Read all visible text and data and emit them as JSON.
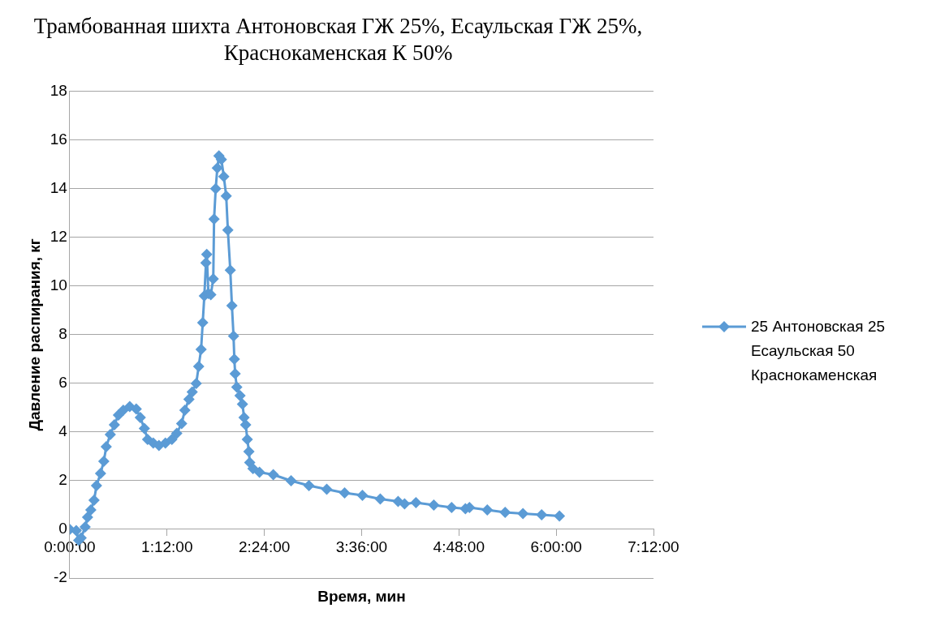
{
  "chart_data": {
    "type": "line",
    "title": "Трамбованная шихта Антоновская ГЖ 25%, Есаульская ГЖ 25%, Краснокаменская К 50%",
    "xlabel": "Время, мин",
    "ylabel": "Давление распирания, кг",
    "xlim": [
      0,
      7.2
    ],
    "xticks": [
      {
        "value": 0,
        "label": "0:00:00"
      },
      {
        "value": 1.2,
        "label": "1:12:00"
      },
      {
        "value": 2.4,
        "label": "2:24:00"
      },
      {
        "value": 3.6,
        "label": "3:36:00"
      },
      {
        "value": 4.8,
        "label": "4:48:00"
      },
      {
        "value": 6,
        "label": "6:00:00"
      },
      {
        "value": 7.2,
        "label": "7:12:00"
      }
    ],
    "ylim": [
      -2,
      18
    ],
    "yticks": [
      -2,
      0,
      2,
      4,
      6,
      8,
      10,
      12,
      14,
      16,
      18
    ],
    "grid": "y",
    "legend": "right",
    "marker": "diamond",
    "line_style": "solid",
    "series": [
      {
        "name": "25 Антоновская 25 Есаульская 50 Краснокаменская",
        "color": "#5b9bd5",
        "x": [
          0,
          0.08,
          0.11,
          0.14,
          0.19,
          0.22,
          0.26,
          0.3,
          0.33,
          0.38,
          0.42,
          0.45,
          0.5,
          0.55,
          0.6,
          0.66,
          0.74,
          0.82,
          0.87,
          0.92,
          0.96,
          1.03,
          1.1,
          1.18,
          1.26,
          1.32,
          1.38,
          1.42,
          1.47,
          1.51,
          1.56,
          1.59,
          1.62,
          1.64,
          1.66,
          1.68,
          1.69,
          1.71,
          1.74,
          1.77,
          1.78,
          1.8,
          1.82,
          1.84,
          1.87,
          1.9,
          1.93,
          1.95,
          1.98,
          2.0,
          2.02,
          2.03,
          2.04,
          2.06,
          2.1,
          2.13,
          2.15,
          2.17,
          2.19,
          2.21,
          2.22,
          2.26,
          2.34,
          2.51,
          2.73,
          2.95,
          3.17,
          3.39,
          3.61,
          3.83,
          4.05,
          4.13,
          4.27,
          4.49,
          4.71,
          4.88,
          4.93,
          5.15,
          5.37,
          5.59,
          5.82,
          6.04
        ],
        "values": [
          0,
          -0.05,
          -0.45,
          -0.35,
          0.1,
          0.5,
          0.8,
          1.2,
          1.8,
          2.3,
          2.8,
          3.4,
          3.9,
          4.3,
          4.7,
          4.9,
          5.05,
          4.95,
          4.6,
          4.15,
          3.7,
          3.55,
          3.45,
          3.55,
          3.7,
          3.95,
          4.35,
          4.9,
          5.35,
          5.65,
          6.0,
          6.7,
          7.4,
          8.5,
          9.6,
          10.95,
          11.3,
          9.7,
          9.65,
          10.3,
          12.75,
          14.0,
          14.85,
          15.35,
          15.2,
          14.5,
          13.7,
          12.3,
          10.65,
          9.2,
          7.95,
          7.0,
          6.4,
          5.85,
          5.5,
          5.15,
          4.6,
          4.3,
          3.7,
          3.2,
          2.75,
          2.5,
          2.35,
          2.25,
          2.0,
          1.8,
          1.65,
          1.5,
          1.4,
          1.25,
          1.15,
          1.05,
          1.1,
          1.0,
          0.9,
          0.85,
          0.9,
          0.8,
          0.7,
          0.65,
          0.6,
          0.55
        ]
      }
    ]
  }
}
